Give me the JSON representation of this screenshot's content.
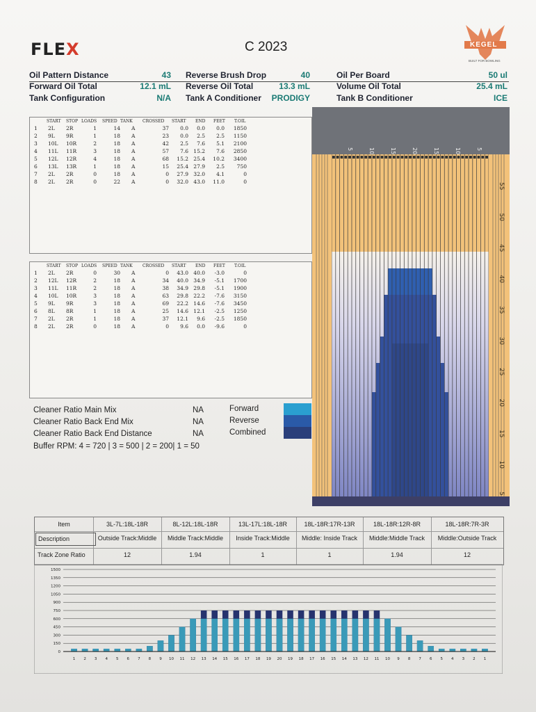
{
  "header": {
    "logo": "FLEX",
    "title": "C 2023",
    "brand": "KEGEL",
    "brand_sub": "BUILT FOR BOWLING",
    "fields": [
      {
        "label": "Oil Pattern Distance",
        "value": "43"
      },
      {
        "label": "Forward Oil Total",
        "value": "12.1 mL"
      },
      {
        "label": "Tank Configuration",
        "value": "N/A"
      },
      {
        "label": "Reverse Brush Drop",
        "value": "40"
      },
      {
        "label": "Reverse Oil Total",
        "value": "13.3 mL"
      },
      {
        "label": "Tank A Conditioner",
        "value": "PRODIGY"
      },
      {
        "label": "Oil Per Board",
        "value": "50 ul"
      },
      {
        "label": "Volume Oil Total",
        "value": "25.4 mL"
      },
      {
        "label": "Tank B Conditioner",
        "value": "ICE"
      }
    ]
  },
  "forward_table": {
    "headers": [
      "START",
      "STOP",
      "LOADS",
      "SPEED",
      "TANK",
      "CROSSED",
      "START",
      "END",
      "FEET",
      "T.OIL"
    ],
    "rows": [
      [
        "1",
        "2L",
        "2R",
        "1",
        "14",
        "A",
        "37",
        "0.0",
        "0.0",
        "0.0",
        "1850"
      ],
      [
        "2",
        "9L",
        "9R",
        "1",
        "18",
        "A",
        "23",
        "0.0",
        "2.5",
        "2.5",
        "1150"
      ],
      [
        "3",
        "10L",
        "10R",
        "2",
        "18",
        "A",
        "42",
        "2.5",
        "7.6",
        "5.1",
        "2100"
      ],
      [
        "4",
        "11L",
        "11R",
        "3",
        "18",
        "A",
        "57",
        "7.6",
        "15.2",
        "7.6",
        "2850"
      ],
      [
        "5",
        "12L",
        "12R",
        "4",
        "18",
        "A",
        "68",
        "15.2",
        "25.4",
        "10.2",
        "3400"
      ],
      [
        "6",
        "13L",
        "13R",
        "1",
        "18",
        "A",
        "15",
        "25.4",
        "27.9",
        "2.5",
        "750"
      ],
      [
        "7",
        "2L",
        "2R",
        "0",
        "18",
        "A",
        "0",
        "27.9",
        "32.0",
        "4.1",
        "0"
      ],
      [
        "8",
        "2L",
        "2R",
        "0",
        "22",
        "A",
        "0",
        "32.0",
        "43.0",
        "11.0",
        "0"
      ]
    ]
  },
  "reverse_table": {
    "headers": [
      "START",
      "STOP",
      "LOADS",
      "SPEED",
      "TANK",
      "CROSSED",
      "START",
      "END",
      "FEET",
      "T.OIL"
    ],
    "rows": [
      [
        "1",
        "2L",
        "2R",
        "0",
        "30",
        "A",
        "0",
        "43.0",
        "40.0",
        "-3.0",
        "0"
      ],
      [
        "2",
        "12L",
        "12R",
        "2",
        "18",
        "A",
        "34",
        "40.0",
        "34.9",
        "-5.1",
        "1700"
      ],
      [
        "3",
        "11L",
        "11R",
        "2",
        "18",
        "A",
        "38",
        "34.9",
        "29.8",
        "-5.1",
        "1900"
      ],
      [
        "4",
        "10L",
        "10R",
        "3",
        "18",
        "A",
        "63",
        "29.8",
        "22.2",
        "-7.6",
        "3150"
      ],
      [
        "5",
        "9L",
        "9R",
        "3",
        "18",
        "A",
        "69",
        "22.2",
        "14.6",
        "-7.6",
        "3450"
      ],
      [
        "6",
        "8L",
        "8R",
        "1",
        "18",
        "A",
        "25",
        "14.6",
        "12.1",
        "-2.5",
        "1250"
      ],
      [
        "7",
        "2L",
        "2R",
        "1",
        "18",
        "A",
        "37",
        "12.1",
        "9.6",
        "-2.5",
        "1850"
      ],
      [
        "8",
        "2L",
        "2R",
        "0",
        "18",
        "A",
        "0",
        "9.6",
        "0.0",
        "-9.6",
        "0"
      ]
    ]
  },
  "cleaner": {
    "rows": [
      {
        "label": "Cleaner Ratio Main Mix",
        "value": "NA"
      },
      {
        "label": "Cleaner Ratio Back End Mix",
        "value": "NA"
      },
      {
        "label": "Cleaner Ratio Back End Distance",
        "value": "NA"
      }
    ],
    "buffer": "Buffer RPM: 4 = 720 | 3 = 500 | 2 = 200| 1 = 50",
    "legend": [
      {
        "label": "Forward",
        "color": "#2a9fd0"
      },
      {
        "label": "Reverse",
        "color": "#2a5aa8"
      },
      {
        "label": "Combined",
        "color": "#2a3f7a"
      }
    ]
  },
  "lane_graph": {
    "feet_labels": [
      "55",
      "50",
      "45",
      "40",
      "35",
      "30",
      "25",
      "20",
      "15",
      "10",
      "5"
    ],
    "board_labels": [
      "5",
      "10",
      "15",
      "20",
      "15",
      "10",
      "5"
    ],
    "colors": {
      "dry": "#f2c27a",
      "oiled_light": "#7f86c4",
      "oiled_dark": "#2a3f7a",
      "forward": "#2f6fc0"
    }
  },
  "zone_table": {
    "headers": [
      "Item",
      "3L-7L:18L-18R",
      "8L-12L:18L-18R",
      "13L-17L:18L-18R",
      "18L-18R:17R-13R",
      "18L-18R:12R-8R",
      "18L-18R:7R-3R"
    ],
    "description": [
      "Description",
      "Outside Track:Middle",
      "Middle Track:Middle",
      "Inside Track:Middle",
      "Middle: Inside Track",
      "Middle:Middle Track",
      "Middle:Outside Track"
    ],
    "ratio": [
      "Track Zone Ratio",
      "12",
      "1.94",
      "1",
      "1",
      "1.94",
      "12"
    ]
  },
  "chart_data": {
    "type": "bar",
    "categories": [
      "1",
      "2",
      "3",
      "4",
      "5",
      "6",
      "7",
      "8",
      "9",
      "10",
      "11",
      "12",
      "13",
      "14",
      "15",
      "16",
      "17",
      "18",
      "19",
      "20",
      "19",
      "18",
      "17",
      "16",
      "15",
      "14",
      "13",
      "12",
      "11",
      "10",
      "9",
      "8",
      "7",
      "6",
      "5",
      "4",
      "3",
      "2",
      "1"
    ],
    "series": [
      {
        "name": "Reverse",
        "color": "#26336e",
        "values": [
          50,
          50,
          50,
          50,
          50,
          50,
          50,
          100,
          200,
          300,
          450,
          600,
          750,
          750,
          750,
          750,
          750,
          750,
          750,
          750,
          750,
          750,
          750,
          750,
          750,
          750,
          750,
          750,
          750,
          600,
          450,
          300,
          200,
          100,
          50,
          50,
          50,
          50,
          50
        ]
      },
      {
        "name": "Forward",
        "color": "#3a9ab8",
        "values": [
          50,
          50,
          50,
          50,
          50,
          50,
          50,
          100,
          200,
          300,
          450,
          600,
          600,
          600,
          600,
          600,
          600,
          600,
          600,
          600,
          600,
          600,
          600,
          600,
          600,
          600,
          600,
          600,
          600,
          600,
          450,
          300,
          200,
          100,
          50,
          50,
          50,
          50,
          50
        ]
      }
    ],
    "ylim": [
      0,
      1500
    ],
    "yticks": [
      "1500",
      "1350",
      "1200",
      "1050",
      "900",
      "750",
      "600",
      "450",
      "300",
      "150",
      "0"
    ]
  }
}
